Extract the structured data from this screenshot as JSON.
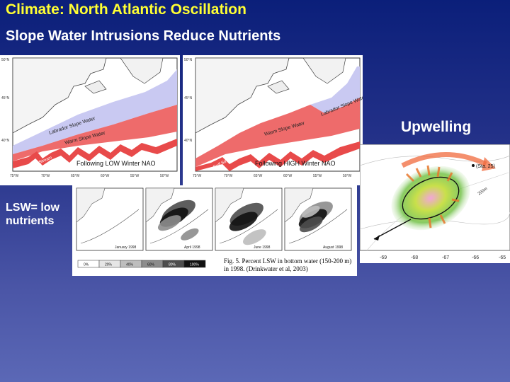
{
  "slide": {
    "title": "Climate:  North Atlantic Oscillation",
    "subtitle": "Slope Water Intrusions Reduce Nutrients",
    "upwelling_label": "Upwelling",
    "lsw_label": "LSW= low nutrients"
  },
  "map_low": {
    "lat_ticks": [
      "50°N",
      "45°N",
      "40°N"
    ],
    "lon_ticks": [
      "75°W",
      "70°W",
      "65°W",
      "60°W",
      "55°W",
      "50°W"
    ],
    "labrador": "Labrador Slope Water",
    "warm": "Warm Slope Water",
    "gulf": "Gulf Stream",
    "caption": "Following LOW Winter NAO"
  },
  "map_high": {
    "lat_ticks": [
      "50°N",
      "45°N",
      "40°N"
    ],
    "lon_ticks": [
      "75°W",
      "70°W",
      "65°W",
      "60°W",
      "55°W",
      "50°W"
    ],
    "labrador": "Labrador Slope Water",
    "warm": "Warm Slope Water",
    "gulf": "Gulf Stream",
    "caption": "Following HIGH Winter NAO"
  },
  "seasonal": {
    "months": [
      "January 1998",
      "April 1998",
      "June 1998",
      "August 1998"
    ],
    "legend": [
      "0%",
      "20%",
      "40%",
      "60%",
      "80%",
      "100%"
    ],
    "legend_colors": [
      "#ffffff",
      "#e6e6e6",
      "#bdbdbd",
      "#8c8c8c",
      "#4d4d4d",
      "#111111"
    ],
    "caption": "Fig. 5.  Percent LSW in bottom water (150-200 m) in 1998.  (Drinkwater et al, 2003)"
  },
  "upwell_map": {
    "station": "(Sta. 25)",
    "depth": "200m",
    "lon_ticks": [
      "-69",
      "-68",
      "-67",
      "-66",
      "-65"
    ]
  },
  "colors": {
    "title": "#ffff33",
    "labrador_water": "#c9c9f2",
    "warm_water": "#ee6b6b",
    "arrow": "#f06a3c"
  }
}
